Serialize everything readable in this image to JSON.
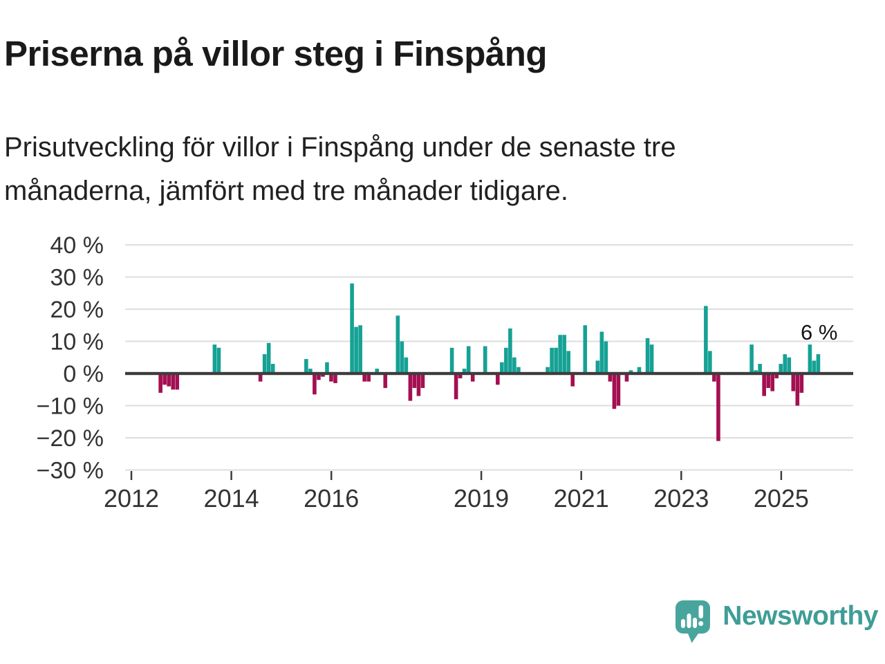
{
  "header": {
    "title": "Priserna på villor steg i Finspång",
    "subtitle_line1": "Prisutveckling för villor i Finspång under de senaste tre",
    "subtitle_line2": "månaderna, jämfört med tre månader tidigare."
  },
  "chart_data": {
    "type": "bar",
    "unit": "%",
    "title": "",
    "xlabel": "",
    "ylabel": "",
    "ylim": [
      -30,
      40
    ],
    "grid": true,
    "yticks": [
      40,
      30,
      20,
      10,
      0,
      -10,
      -20,
      -30
    ],
    "ytick_labels": [
      "40 %",
      "30 %",
      "20 %",
      "10 %",
      "0 %",
      "−10 %",
      "−20 %",
      "−30 %"
    ],
    "xticks": [
      2012,
      2014,
      2016,
      2019,
      2021,
      2023,
      2025
    ],
    "xtick_labels": [
      "2012",
      "2014",
      "2016",
      "2019",
      "2021",
      "2023",
      "2025"
    ],
    "annotation": {
      "text": "6 %",
      "month": "2025-10"
    },
    "colors": {
      "positive": "#16a195",
      "negative": "#a31051",
      "zero_line": "#3d3d3d",
      "gridline": "#dedede",
      "tick": "#3d3d3d"
    },
    "bars": [
      {
        "month": "2012-08",
        "value": -6
      },
      {
        "month": "2012-09",
        "value": -3.5
      },
      {
        "month": "2012-10",
        "value": -4
      },
      {
        "month": "2012-11",
        "value": -5
      },
      {
        "month": "2012-12",
        "value": -5
      },
      {
        "month": "2013-09",
        "value": 9
      },
      {
        "month": "2013-10",
        "value": 8
      },
      {
        "month": "2014-08",
        "value": -2.5
      },
      {
        "month": "2014-09",
        "value": 6
      },
      {
        "month": "2014-10",
        "value": 9.5
      },
      {
        "month": "2014-11",
        "value": 3
      },
      {
        "month": "2015-07",
        "value": 4.5
      },
      {
        "month": "2015-08",
        "value": 1.5
      },
      {
        "month": "2015-09",
        "value": -6.5
      },
      {
        "month": "2015-10",
        "value": -2
      },
      {
        "month": "2015-11",
        "value": -1
      },
      {
        "month": "2015-12",
        "value": 3.5
      },
      {
        "month": "2016-01",
        "value": -2.5
      },
      {
        "month": "2016-02",
        "value": -3
      },
      {
        "month": "2016-06",
        "value": 28
      },
      {
        "month": "2016-07",
        "value": 14.5
      },
      {
        "month": "2016-08",
        "value": 15
      },
      {
        "month": "2016-09",
        "value": -2.5
      },
      {
        "month": "2016-10",
        "value": -2.5
      },
      {
        "month": "2016-12",
        "value": 1.5
      },
      {
        "month": "2017-02",
        "value": -4.5
      },
      {
        "month": "2017-05",
        "value": 18
      },
      {
        "month": "2017-06",
        "value": 10
      },
      {
        "month": "2017-07",
        "value": 5
      },
      {
        "month": "2017-08",
        "value": -8.5
      },
      {
        "month": "2017-09",
        "value": -4.5
      },
      {
        "month": "2017-10",
        "value": -7
      },
      {
        "month": "2017-11",
        "value": -4.5
      },
      {
        "month": "2018-06",
        "value": 8
      },
      {
        "month": "2018-07",
        "value": -8
      },
      {
        "month": "2018-08",
        "value": -1.5
      },
      {
        "month": "2018-09",
        "value": 1.5
      },
      {
        "month": "2018-10",
        "value": 8.5
      },
      {
        "month": "2018-11",
        "value": -2.5
      },
      {
        "month": "2019-02",
        "value": 8.5
      },
      {
        "month": "2019-05",
        "value": -3.5
      },
      {
        "month": "2019-06",
        "value": 3.5
      },
      {
        "month": "2019-07",
        "value": 8
      },
      {
        "month": "2019-08",
        "value": 14
      },
      {
        "month": "2019-09",
        "value": 5
      },
      {
        "month": "2019-10",
        "value": 2
      },
      {
        "month": "2020-05",
        "value": 2
      },
      {
        "month": "2020-06",
        "value": 8
      },
      {
        "month": "2020-07",
        "value": 8
      },
      {
        "month": "2020-08",
        "value": 12
      },
      {
        "month": "2020-09",
        "value": 12
      },
      {
        "month": "2020-10",
        "value": 7
      },
      {
        "month": "2020-11",
        "value": -4
      },
      {
        "month": "2021-02",
        "value": 15
      },
      {
        "month": "2021-05",
        "value": 4
      },
      {
        "month": "2021-06",
        "value": 13
      },
      {
        "month": "2021-07",
        "value": 10
      },
      {
        "month": "2021-08",
        "value": -2.5
      },
      {
        "month": "2021-09",
        "value": -11
      },
      {
        "month": "2021-10",
        "value": -10
      },
      {
        "month": "2021-12",
        "value": -2.5
      },
      {
        "month": "2022-01",
        "value": 1
      },
      {
        "month": "2022-03",
        "value": 2
      },
      {
        "month": "2022-05",
        "value": 11
      },
      {
        "month": "2022-06",
        "value": 9
      },
      {
        "month": "2023-07",
        "value": 21
      },
      {
        "month": "2023-08",
        "value": 7
      },
      {
        "month": "2023-09",
        "value": -2.5
      },
      {
        "month": "2023-10",
        "value": -21
      },
      {
        "month": "2024-06",
        "value": 9
      },
      {
        "month": "2024-07",
        "value": 1
      },
      {
        "month": "2024-08",
        "value": 3
      },
      {
        "month": "2024-09",
        "value": -7
      },
      {
        "month": "2024-10",
        "value": -4.5
      },
      {
        "month": "2024-11",
        "value": -5.5
      },
      {
        "month": "2024-12",
        "value": -1.5
      },
      {
        "month": "2025-01",
        "value": 3
      },
      {
        "month": "2025-02",
        "value": 6
      },
      {
        "month": "2025-03",
        "value": 5
      },
      {
        "month": "2025-04",
        "value": -5.5
      },
      {
        "month": "2025-05",
        "value": -10
      },
      {
        "month": "2025-06",
        "value": -6
      },
      {
        "month": "2025-08",
        "value": 9
      },
      {
        "month": "2025-09",
        "value": 4
      },
      {
        "month": "2025-10",
        "value": 6
      }
    ]
  },
  "footer": {
    "brand": "Newsworthy",
    "logo_icon": "bar-chart-speech-bubble-icon",
    "logo_color": "#48a59d"
  }
}
